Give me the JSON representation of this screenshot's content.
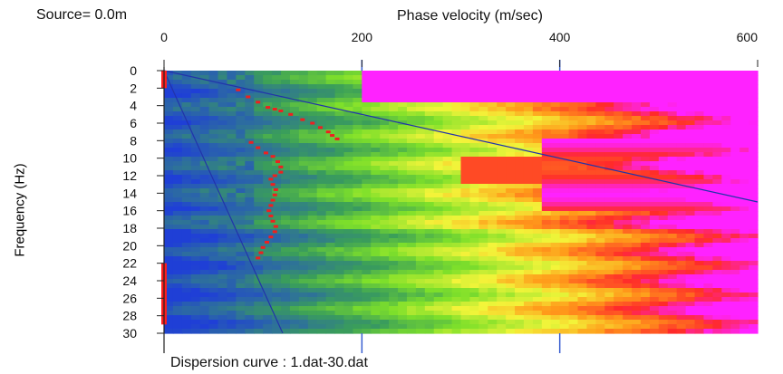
{
  "header": {
    "source_label": "Source=  0.0m"
  },
  "footer": {
    "caption": "Dispersion curve : 1.dat-30.dat"
  },
  "chart_data": {
    "type": "heatmap",
    "xlabel": "Phase velocity (m/sec)",
    "ylabel": "Frequency (Hz)",
    "xlim": [
      0,
      600
    ],
    "ylim": [
      0,
      30
    ],
    "x_axis_position": "top",
    "y_inverted": true,
    "xticks": [
      0,
      200,
      400,
      600
    ],
    "yticks": [
      0,
      2,
      4,
      6,
      8,
      10,
      12,
      14,
      16,
      18,
      20,
      22,
      24,
      26,
      28,
      30
    ],
    "grid_x": [
      200,
      400
    ],
    "colormap": [
      "#1f3fd6",
      "#2d6e9e",
      "#3a9e5a",
      "#7ee02a",
      "#f3f53a",
      "#ff9a1a",
      "#ff2a2a",
      "#ff22ff"
    ],
    "reference_lines": [
      {
        "x": [
          0,
          600
        ],
        "y": [
          0,
          15
        ]
      },
      {
        "x": [
          0,
          120
        ],
        "y": [
          0,
          30
        ]
      }
    ],
    "series": [
      {
        "values_x": [
          75,
          85,
          95,
          105,
          112,
          118,
          128,
          140,
          150,
          158,
          166,
          170,
          175
        ],
        "values_y": [
          2.2,
          3.0,
          3.6,
          4.2,
          4.4,
          4.6,
          5.0,
          5.6,
          6.0,
          6.5,
          7.0,
          7.4,
          7.8
        ]
      },
      {
        "values_x": [
          88,
          95,
          103,
          110,
          115,
          118,
          118,
          112,
          108,
          110,
          113,
          112,
          110,
          108,
          106,
          108,
          110,
          113,
          112,
          108,
          104,
          100,
          98,
          95
        ],
        "values_y": [
          8.2,
          8.8,
          9.4,
          9.8,
          10.4,
          11.0,
          11.6,
          12.0,
          12.4,
          13.0,
          13.6,
          14.2,
          14.8,
          15.4,
          16.0,
          16.6,
          17.2,
          17.8,
          18.4,
          19.0,
          19.6,
          20.2,
          20.8,
          21.4
        ]
      }
    ],
    "edge_markers_y": [
      [
        0,
        2
      ],
      [
        22,
        29
      ]
    ]
  }
}
